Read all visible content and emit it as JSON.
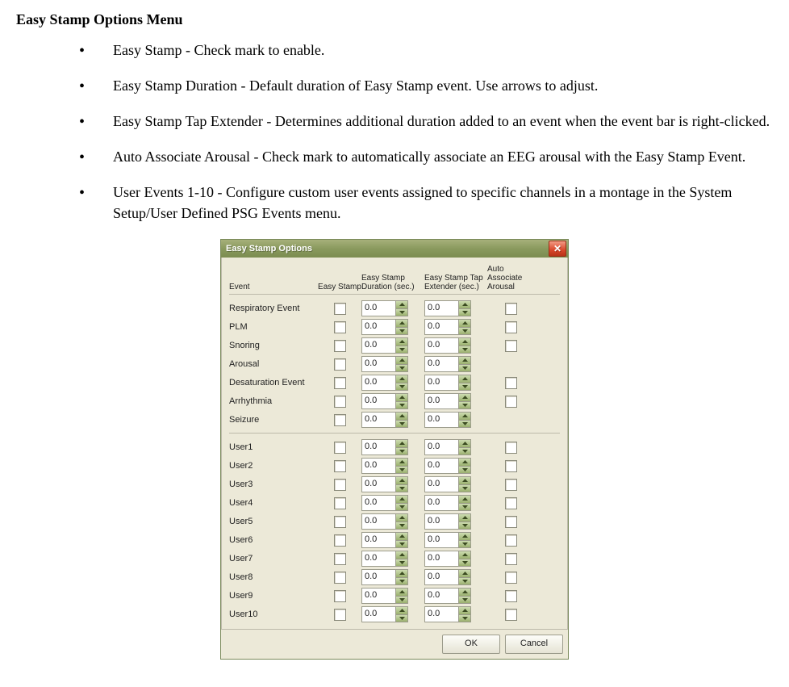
{
  "heading": "Easy Stamp Options Menu",
  "bullets": [
    "Easy Stamp - Check mark to enable.",
    "Easy Stamp Duration - Default duration of Easy Stamp event. Use arrows to adjust.",
    "Easy Stamp Tap Extender - Determines additional duration added to an event when the event bar is right-clicked.",
    "Auto Associate Arousal - Check mark to automatically associate an EEG arousal with the Easy Stamp Event.",
    "User Events 1-10 - Configure custom user events assigned to specific channels in a montage in the System Setup/User Defined PSG Events menu."
  ],
  "dialog": {
    "title": "Easy Stamp Options",
    "close_glyph": "✕",
    "headers": {
      "event": "Event",
      "easy_stamp": "Easy Stamp",
      "duration": "Easy Stamp Duration (sec.)",
      "tap_ext": "Easy Stamp Tap Extender (sec.)",
      "auto": "Auto Associate Arousal"
    },
    "groups": [
      {
        "rows": [
          {
            "label": "Respiratory Event",
            "es": false,
            "duration": "0.0",
            "ext": "0.0",
            "has_auto": true,
            "auto": false
          },
          {
            "label": "PLM",
            "es": false,
            "duration": "0.0",
            "ext": "0.0",
            "has_auto": true,
            "auto": false
          },
          {
            "label": "Snoring",
            "es": false,
            "duration": "0.0",
            "ext": "0.0",
            "has_auto": true,
            "auto": false
          },
          {
            "label": "Arousal",
            "es": false,
            "duration": "0.0",
            "ext": "0.0",
            "has_auto": false,
            "auto": false
          },
          {
            "label": "Desaturation Event",
            "es": false,
            "duration": "0.0",
            "ext": "0.0",
            "has_auto": true,
            "auto": false
          },
          {
            "label": "Arrhythmia",
            "es": false,
            "duration": "0.0",
            "ext": "0.0",
            "has_auto": true,
            "auto": false
          },
          {
            "label": "Seizure",
            "es": false,
            "duration": "0.0",
            "ext": "0.0",
            "has_auto": false,
            "auto": false
          }
        ]
      },
      {
        "rows": [
          {
            "label": "User1",
            "es": false,
            "duration": "0.0",
            "ext": "0.0",
            "has_auto": true,
            "auto": false
          },
          {
            "label": "User2",
            "es": false,
            "duration": "0.0",
            "ext": "0.0",
            "has_auto": true,
            "auto": false
          },
          {
            "label": "User3",
            "es": false,
            "duration": "0.0",
            "ext": "0.0",
            "has_auto": true,
            "auto": false
          },
          {
            "label": "User4",
            "es": false,
            "duration": "0.0",
            "ext": "0.0",
            "has_auto": true,
            "auto": false
          },
          {
            "label": "User5",
            "es": false,
            "duration": "0.0",
            "ext": "0.0",
            "has_auto": true,
            "auto": false
          },
          {
            "label": "User6",
            "es": false,
            "duration": "0.0",
            "ext": "0.0",
            "has_auto": true,
            "auto": false
          },
          {
            "label": "User7",
            "es": false,
            "duration": "0.0",
            "ext": "0.0",
            "has_auto": true,
            "auto": false
          },
          {
            "label": "User8",
            "es": false,
            "duration": "0.0",
            "ext": "0.0",
            "has_auto": true,
            "auto": false
          },
          {
            "label": "User9",
            "es": false,
            "duration": "0.0",
            "ext": "0.0",
            "has_auto": true,
            "auto": false
          },
          {
            "label": "User10",
            "es": false,
            "duration": "0.0",
            "ext": "0.0",
            "has_auto": true,
            "auto": false
          }
        ]
      }
    ],
    "buttons": {
      "ok": "OK",
      "cancel": "Cancel"
    },
    "colors": {
      "titlebar_top": "#a6b07a",
      "titlebar_bottom": "#7b8c50",
      "body_bg": "#ece9d8",
      "border": "#7a8a5a",
      "close_bg_top": "#f29a84",
      "close_bg_bottom": "#b83318",
      "spinner_top": "#cddcb0",
      "spinner_bottom": "#9ab06e"
    }
  }
}
